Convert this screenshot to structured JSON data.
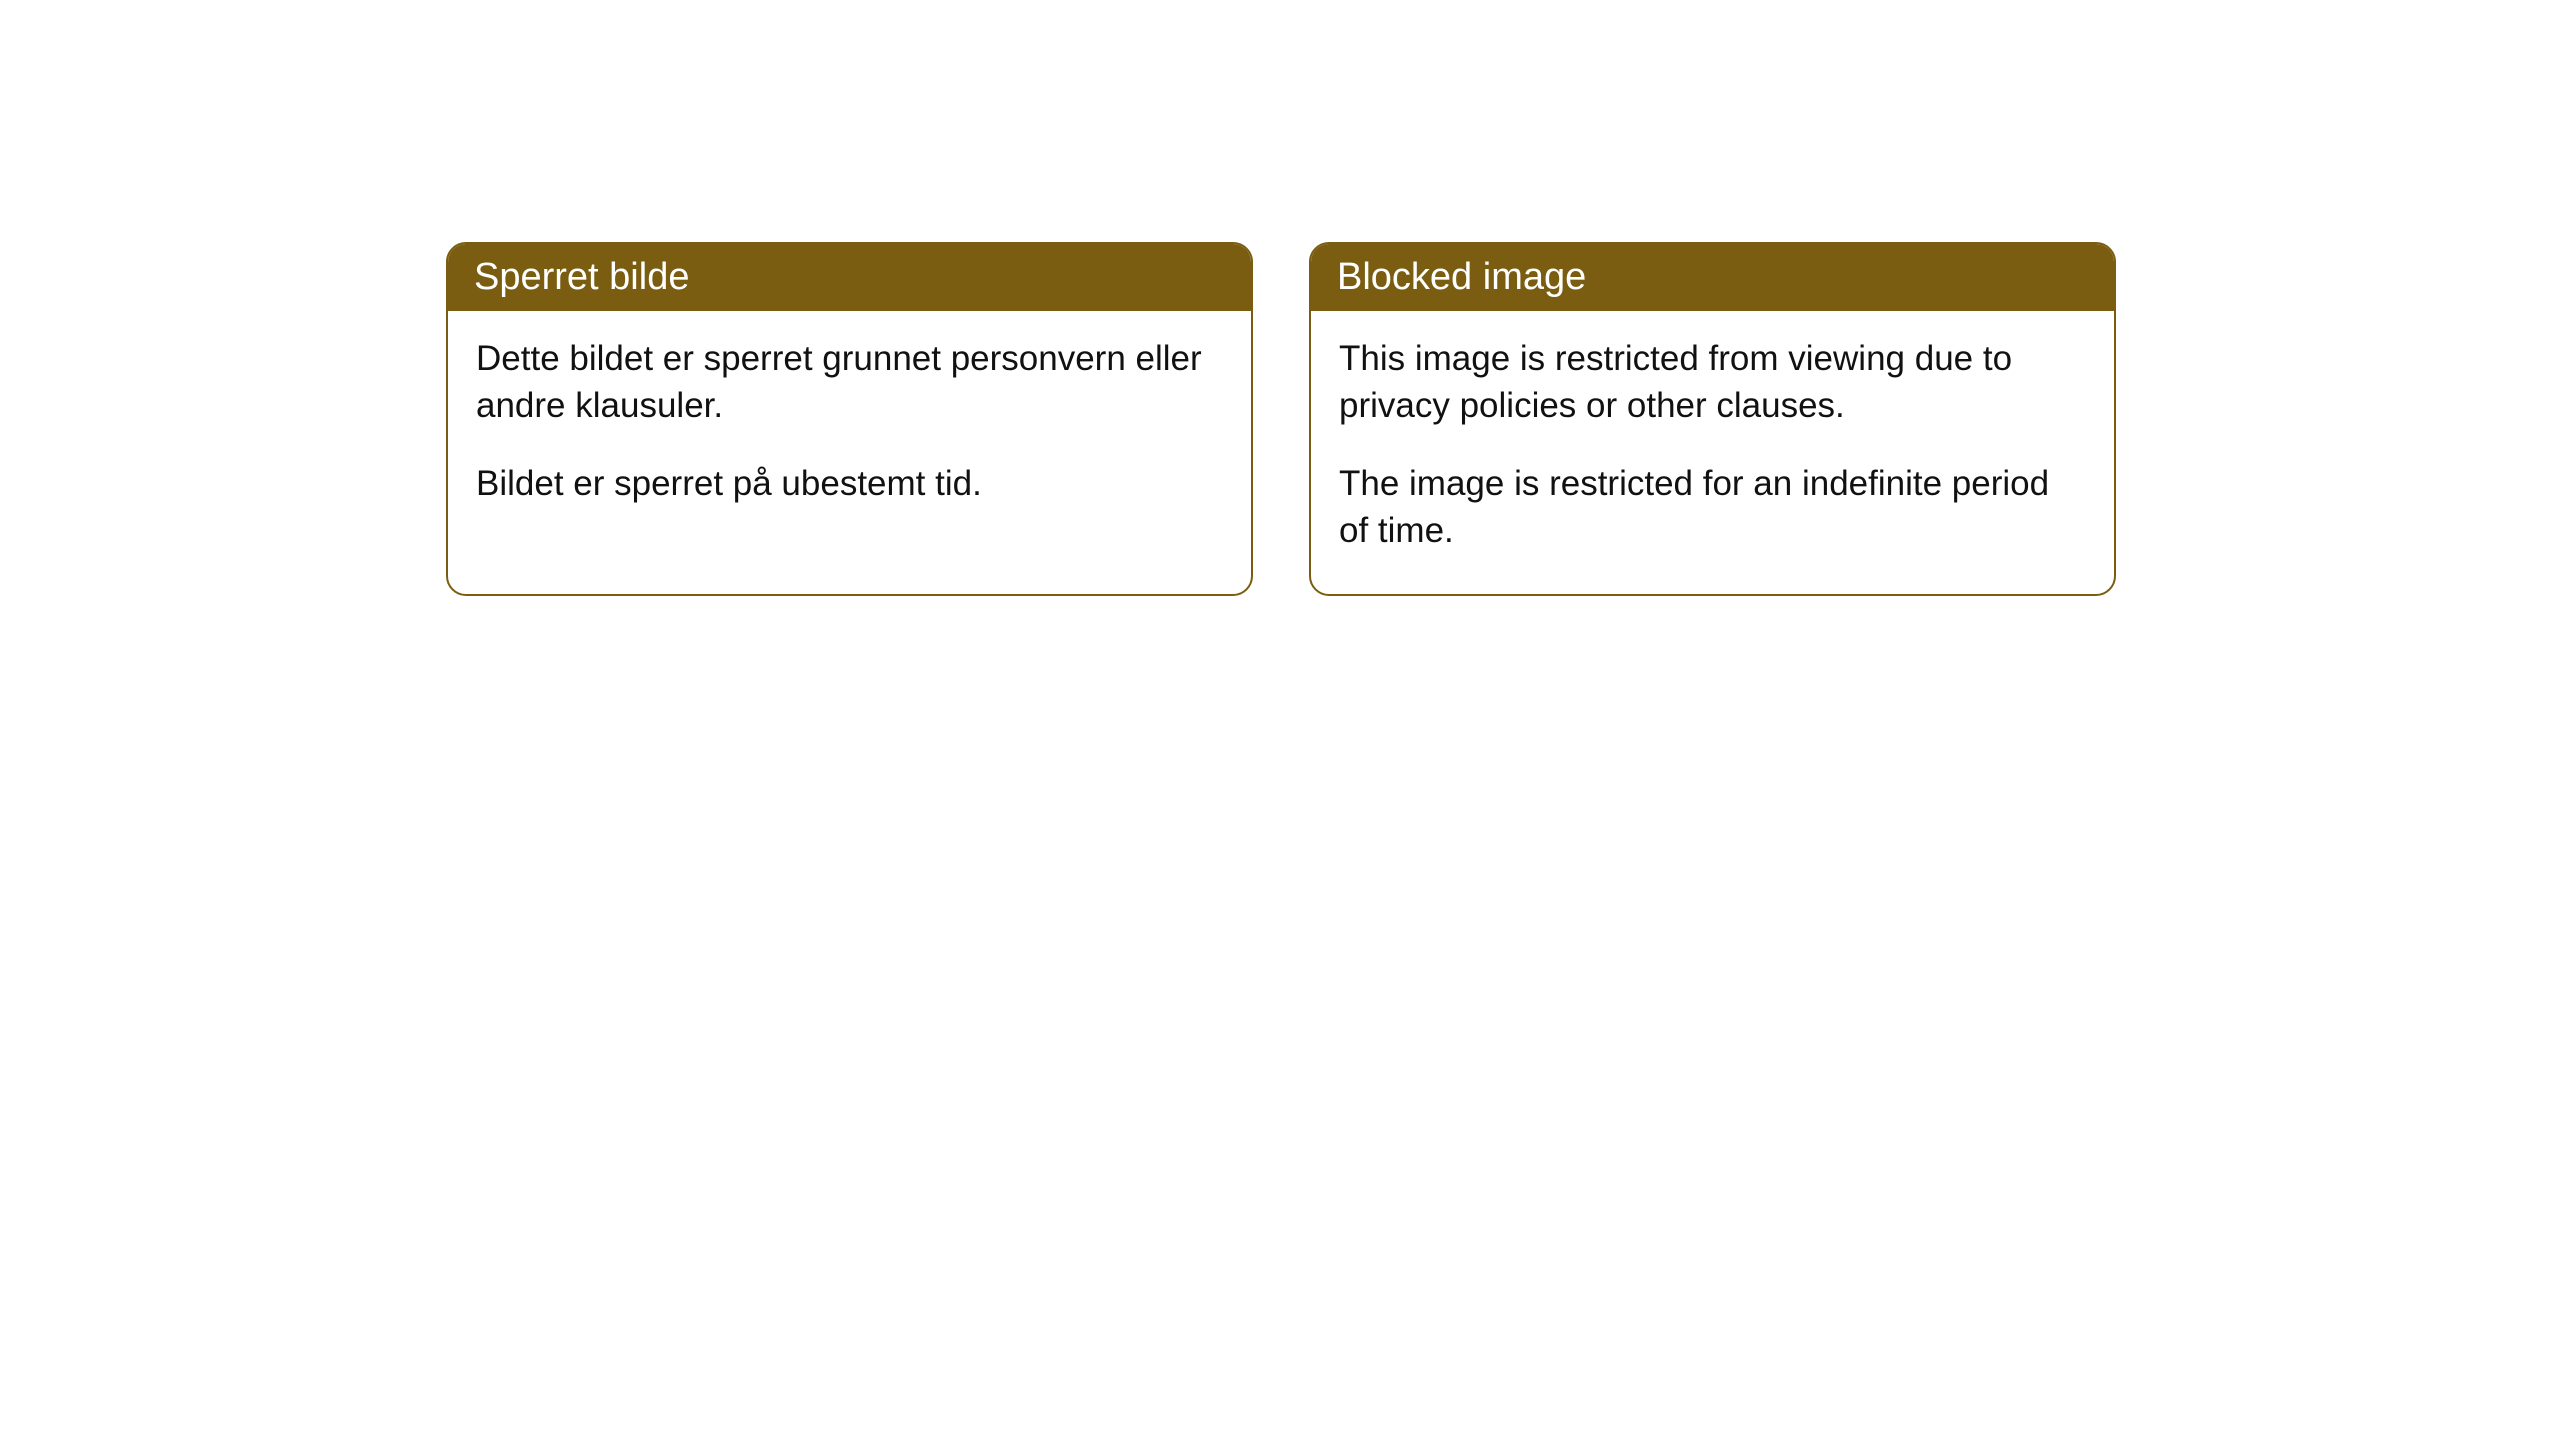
{
  "cards": [
    {
      "title": "Sperret bilde",
      "paragraph1": "Dette bildet er sperret grunnet personvern eller andre klausuler.",
      "paragraph2": "Bildet er sperret på ubestemt tid."
    },
    {
      "title": "Blocked image",
      "paragraph1": "This image is restricted from viewing due to privacy policies or other clauses.",
      "paragraph2": "The image is restricted for an indefinite period of time."
    }
  ],
  "styling": {
    "header_background": "#7a5d11",
    "header_text_color": "#ffffff",
    "border_color": "#7a5d11",
    "body_background": "#ffffff",
    "body_text_color": "#111111",
    "border_radius": 20,
    "header_fontsize": 38,
    "body_fontsize": 35
  }
}
